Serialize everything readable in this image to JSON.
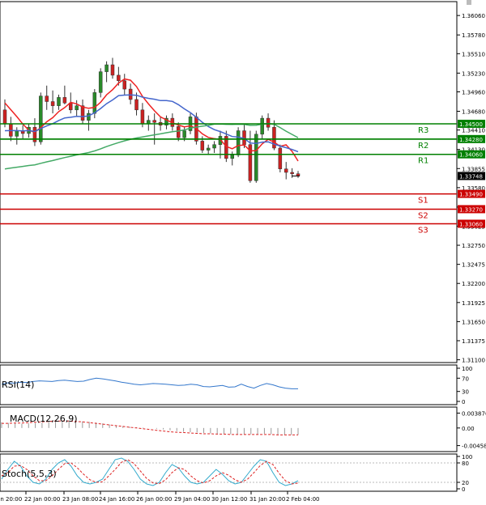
{
  "chart_data": [
    {
      "type": "candlestick",
      "panel": "price",
      "y_ticks": [
        "1.36060",
        "1.35780",
        "1.35510",
        "1.35230",
        "1.34960",
        "1.34680",
        "1.34410",
        "1.34130",
        "1.33855",
        "1.33580",
        "1.33300",
        "1.33025",
        "1.32750",
        "1.32475",
        "1.32200",
        "1.31925",
        "1.31650",
        "1.31375",
        "1.31100"
      ],
      "ylim": [
        1.3106,
        1.3626
      ],
      "x_ticks": [
        "Jan 20:00",
        "22 Jan 00:00",
        "23 Jan 08:00",
        "24 Jan 16:00",
        "26 Jan 00:00",
        "29 Jan 04:00",
        "30 Jan 12:00",
        "31 Jan 20:00",
        "2 Feb 04:00"
      ],
      "current_price": "1.33748",
      "levels": [
        {
          "name": "R3",
          "price": 1.345,
          "label": "1.34500",
          "color": "#008000"
        },
        {
          "name": "",
          "price": 1.3428,
          "label": "1.34280",
          "color": "#008000"
        },
        {
          "name": "R2",
          "price": 1.3428,
          "label": "",
          "color": "#008000"
        },
        {
          "name": "R1",
          "price": 1.3406,
          "label": "1.34060",
          "color": "#008000"
        },
        {
          "name": "S1",
          "price": 1.3349,
          "label": "1.33490",
          "color": "#cc0000"
        },
        {
          "name": "S2",
          "price": 1.3327,
          "label": "1.33270",
          "color": "#cc0000"
        },
        {
          "name": "S3",
          "price": 1.3306,
          "label": "1.33060",
          "color": "#cc0000"
        }
      ],
      "level_text_labels": [
        "R3",
        "R2",
        "R1",
        "S1",
        "S2",
        "S3"
      ],
      "candles": [
        [
          1.347,
          1.3485,
          1.3445,
          1.345
        ],
        [
          1.345,
          1.346,
          1.3425,
          1.3432
        ],
        [
          1.3432,
          1.3445,
          1.342,
          1.344
        ],
        [
          1.344,
          1.3448,
          1.3428,
          1.3436
        ],
        [
          1.3436,
          1.345,
          1.343,
          1.3445
        ],
        [
          1.3445,
          1.3458,
          1.3418,
          1.3424
        ],
        [
          1.3424,
          1.3495,
          1.342,
          1.349
        ],
        [
          1.349,
          1.3505,
          1.347,
          1.3482
        ],
        [
          1.3482,
          1.3498,
          1.3465,
          1.3476
        ],
        [
          1.3476,
          1.3492,
          1.347,
          1.3488
        ],
        [
          1.3488,
          1.3505,
          1.3478,
          1.348
        ],
        [
          1.348,
          1.3495,
          1.3465,
          1.347
        ],
        [
          1.347,
          1.3484,
          1.346,
          1.3476
        ],
        [
          1.3476,
          1.3485,
          1.345,
          1.3455
        ],
        [
          1.3455,
          1.347,
          1.344,
          1.3465
        ],
        [
          1.3465,
          1.35,
          1.3458,
          1.3495
        ],
        [
          1.3495,
          1.353,
          1.3488,
          1.3525
        ],
        [
          1.3525,
          1.354,
          1.351,
          1.3535
        ],
        [
          1.3535,
          1.3545,
          1.3515,
          1.352
        ],
        [
          1.352,
          1.3532,
          1.3505,
          1.3512
        ],
        [
          1.3512,
          1.3522,
          1.3492,
          1.35
        ],
        [
          1.35,
          1.3508,
          1.3478,
          1.3485
        ],
        [
          1.3485,
          1.3495,
          1.3462,
          1.347
        ],
        [
          1.347,
          1.348,
          1.3445,
          1.345
        ],
        [
          1.345,
          1.3462,
          1.344,
          1.3455
        ],
        [
          1.3455,
          1.3465,
          1.342,
          1.3452
        ],
        [
          1.3452,
          1.346,
          1.344,
          1.3448
        ],
        [
          1.3448,
          1.3462,
          1.3442,
          1.3458
        ],
        [
          1.3458,
          1.3465,
          1.344,
          1.3446
        ],
        [
          1.3446,
          1.3452,
          1.3425,
          1.343
        ],
        [
          1.343,
          1.3445,
          1.3425,
          1.344
        ],
        [
          1.344,
          1.3465,
          1.3435,
          1.346
        ],
        [
          1.346,
          1.3466,
          1.342,
          1.3425
        ],
        [
          1.3425,
          1.3432,
          1.3408,
          1.3412
        ],
        [
          1.3412,
          1.342,
          1.3405,
          1.3415
        ],
        [
          1.3415,
          1.3425,
          1.3408,
          1.342
        ],
        [
          1.342,
          1.344,
          1.34,
          1.3432
        ],
        [
          1.3432,
          1.344,
          1.3395,
          1.34
        ],
        [
          1.34,
          1.341,
          1.339,
          1.3405
        ],
        [
          1.3405,
          1.3445,
          1.3402,
          1.344
        ],
        [
          1.344,
          1.345,
          1.3415,
          1.342
        ],
        [
          1.342,
          1.344,
          1.3365,
          1.3368
        ],
        [
          1.3368,
          1.344,
          1.3365,
          1.3435
        ],
        [
          1.3435,
          1.3462,
          1.3428,
          1.3458
        ],
        [
          1.3458,
          1.3465,
          1.344,
          1.3445
        ],
        [
          1.3445,
          1.3455,
          1.3412,
          1.3415
        ],
        [
          1.3415,
          1.342,
          1.338,
          1.3385
        ],
        [
          1.3385,
          1.3395,
          1.337,
          1.338
        ],
        [
          1.338,
          1.3386,
          1.3372,
          1.3378
        ],
        [
          1.3378,
          1.3382,
          1.3372,
          1.3375
        ]
      ]
    },
    {
      "type": "line",
      "panel": "RSI",
      "label": "RSI(14)",
      "y_ticks": [
        "100",
        "70",
        "30",
        "0"
      ],
      "ylim": [
        0,
        100
      ],
      "values": [
        52,
        56,
        55,
        58,
        57,
        60,
        62,
        61,
        60,
        63,
        64,
        62,
        60,
        61,
        66,
        70,
        68,
        65,
        62,
        58,
        55,
        52,
        50,
        52,
        54,
        53,
        52,
        50,
        48,
        49,
        52,
        50,
        45,
        44,
        46,
        48,
        43,
        44,
        52,
        45,
        40,
        48,
        54,
        50,
        44,
        40,
        38,
        38
      ]
    },
    {
      "type": "line",
      "panel": "MACD",
      "label": "MACD(12,26,9)",
      "y_ticks": [
        "0.003876",
        "0.00",
        "-0.004583"
      ],
      "ylim": [
        -0.0053,
        0.0046
      ],
      "histogram": [
        0.0015,
        0.0013,
        0.0012,
        0.0011,
        0.0012,
        0.0013,
        0.0014,
        0.0016,
        0.0018,
        0.0019,
        0.002,
        0.0019,
        0.0017,
        0.0016,
        0.0014,
        0.0012,
        0.0009,
        0.0007,
        0.0005,
        0.0003,
        0.0002,
        0.0001,
        0.0,
        -0.0002,
        -0.0004,
        -0.0006,
        -0.0008,
        -0.001,
        -0.0011,
        -0.0012,
        -0.0013,
        -0.0014,
        -0.0015,
        -0.0016,
        -0.0016,
        -0.0017,
        -0.0017,
        -0.0016,
        -0.0016,
        -0.0015,
        -0.0016,
        -0.0017,
        -0.0018,
        -0.0018,
        -0.0018
      ],
      "signal": [
        0.0012,
        0.0012,
        0.0013,
        0.0013,
        0.0014,
        0.0015,
        0.0016,
        0.0017,
        0.0018,
        0.0018,
        0.0018,
        0.0017,
        0.0016,
        0.0014,
        0.0012,
        0.001,
        0.0008,
        0.0006,
        0.0004,
        0.0002,
        0.0,
        -0.0002,
        -0.0004,
        -0.0006,
        -0.0008,
        -0.001,
        -0.0011,
        -0.0012,
        -0.0013,
        -0.0014,
        -0.0015,
        -0.0015,
        -0.0016,
        -0.0016,
        -0.0017,
        -0.0017,
        -0.0017,
        -0.0017,
        -0.0017,
        -0.0017,
        -0.0017,
        -0.0018,
        -0.0018,
        -0.0018,
        -0.0018
      ]
    },
    {
      "type": "line",
      "panel": "Stochastic",
      "label": "Stoch(5,5,3)",
      "y_ticks": [
        "100",
        "80",
        "20",
        "0"
      ],
      "ylim": [
        0,
        100
      ],
      "k": [
        30,
        60,
        85,
        70,
        40,
        20,
        15,
        30,
        60,
        80,
        90,
        70,
        40,
        20,
        15,
        20,
        30,
        60,
        90,
        95,
        85,
        60,
        30,
        15,
        10,
        20,
        50,
        75,
        65,
        40,
        20,
        15,
        20,
        40,
        60,
        45,
        25,
        15,
        20,
        45,
        70,
        90,
        85,
        50,
        20,
        10,
        15,
        25
      ],
      "d": [
        40,
        50,
        70,
        72,
        60,
        40,
        25,
        25,
        40,
        60,
        78,
        80,
        65,
        45,
        28,
        20,
        22,
        40,
        60,
        82,
        90,
        78,
        55,
        32,
        18,
        16,
        28,
        50,
        65,
        60,
        40,
        25,
        18,
        25,
        40,
        50,
        42,
        28,
        20,
        30,
        50,
        72,
        85,
        75,
        48,
        25,
        15,
        18
      ]
    }
  ]
}
